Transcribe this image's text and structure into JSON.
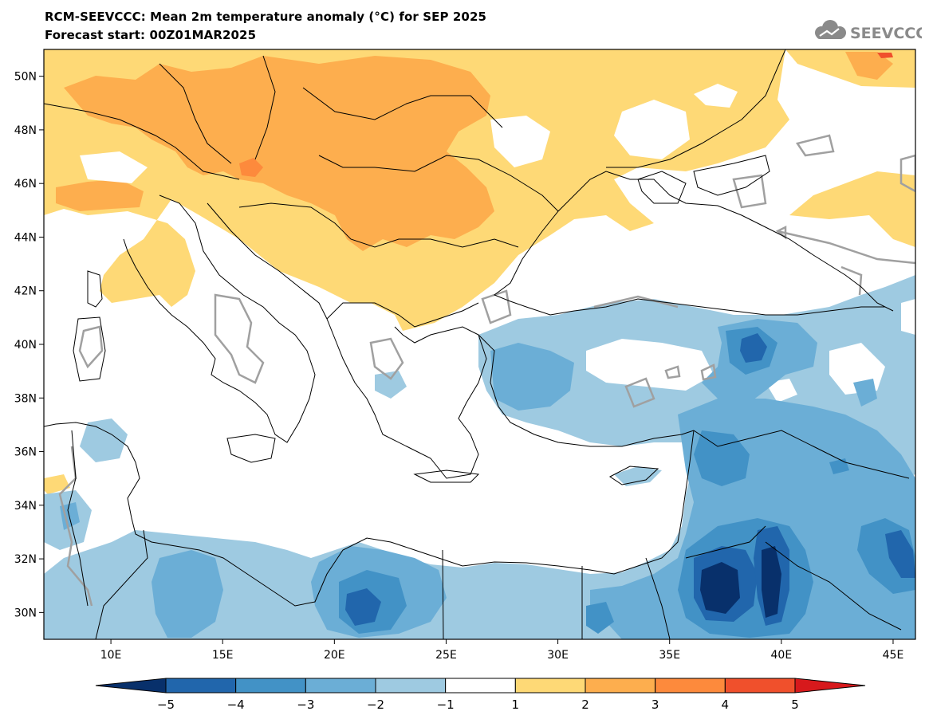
{
  "header": {
    "title": "RCM-SEEVCCC: Mean 2m temperature anomaly (°C) for SEP 2025",
    "subtitle": "Forecast start: 00Z01MAR2025",
    "logo_text": "SEEVCCC"
  },
  "map": {
    "lon_range": [
      7,
      46
    ],
    "lat_range": [
      29,
      51
    ],
    "lon_ticks": [
      {
        "v": 10,
        "label": "10E"
      },
      {
        "v": 15,
        "label": "15E"
      },
      {
        "v": 20,
        "label": "20E"
      },
      {
        "v": 25,
        "label": "25E"
      },
      {
        "v": 30,
        "label": "30E"
      },
      {
        "v": 35,
        "label": "35E"
      },
      {
        "v": 40,
        "label": "40E"
      },
      {
        "v": 45,
        "label": "45E"
      }
    ],
    "lat_ticks": [
      {
        "v": 30,
        "label": "30N"
      },
      {
        "v": 32,
        "label": "32N"
      },
      {
        "v": 34,
        "label": "34N"
      },
      {
        "v": 36,
        "label": "36N"
      },
      {
        "v": 38,
        "label": "38N"
      },
      {
        "v": 40,
        "label": "40N"
      },
      {
        "v": 42,
        "label": "42N"
      },
      {
        "v": 44,
        "label": "44N"
      },
      {
        "v": 46,
        "label": "46N"
      },
      {
        "v": 48,
        "label": "48N"
      },
      {
        "v": 50,
        "label": "50N"
      }
    ],
    "colors": {
      "warm_1_2": "#fed976",
      "warm_2_3": "#fdae4e",
      "warm_3_4": "#fd8a3c",
      "warm_4_5": "#f0502c",
      "cool_m1_m2": "#9ecae1",
      "cool_m2_m3": "#6baed6",
      "cool_m3_m4": "#4292c6",
      "cool_m4_m5": "#2166ac",
      "cool_below_m5": "#08306b",
      "contour": "#a0a0a0",
      "coast": "#000000"
    }
  },
  "colorbar": {
    "labels": [
      "−5",
      "−4",
      "−3",
      "−2",
      "−1",
      "1",
      "2",
      "3",
      "4",
      "5"
    ],
    "colors": [
      "#08306b",
      "#2166ac",
      "#4292c6",
      "#6baed6",
      "#9ecae1",
      "#ffffff",
      "#fed976",
      "#fdae4e",
      "#fd8a3c",
      "#f0502c",
      "#d7191c"
    ]
  }
}
